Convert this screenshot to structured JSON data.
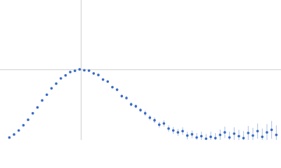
{
  "chart_data": {
    "type": "scatter",
    "x": [
      0.2,
      0.3,
      0.4,
      0.5,
      0.6,
      0.7,
      0.8,
      0.9,
      1.0,
      1.1,
      1.2,
      1.3,
      1.4,
      1.5,
      1.6,
      1.7,
      1.8,
      1.9,
      2.0,
      2.1,
      2.2,
      2.3,
      2.4,
      2.5,
      2.6,
      2.7,
      2.8,
      2.9,
      3.0,
      3.1,
      3.2,
      3.3,
      3.4,
      3.5,
      3.6,
      3.7,
      3.8,
      3.9,
      4.0,
      4.1,
      4.2,
      4.3,
      4.4,
      4.5,
      4.6,
      4.7,
      4.8,
      4.9,
      5.0,
      5.1,
      5.2,
      5.3,
      5.4,
      5.5,
      5.6,
      5.7,
      5.8,
      5.9
    ],
    "series": [
      {
        "color": "#3a6bc4",
        "error_color": "#a9c0e8",
        "values": [
          0.039,
          0.087,
          0.15,
          0.232,
          0.318,
          0.42,
          0.512,
          0.622,
          0.712,
          0.812,
          0.886,
          0.968,
          1.015,
          1.068,
          1.088,
          1.11,
          1.096,
          1.09,
          1.046,
          1.022,
          0.95,
          0.918,
          0.83,
          0.79,
          0.69,
          0.66,
          0.56,
          0.53,
          0.47,
          0.42,
          0.35,
          0.31,
          0.24,
          0.26,
          0.18,
          0.15,
          0.12,
          0.14,
          0.07,
          0.09,
          0.04,
          0.06,
          0.02,
          0.05,
          0.03,
          0.08,
          0.12,
          0.04,
          0.1,
          0.06,
          0.03,
          0.11,
          0.07,
          0.14,
          0.05,
          0.12,
          0.16,
          0.08
        ],
        "errors": [
          0.01,
          0.01,
          0.01,
          0.01,
          0.01,
          0.01,
          0.01,
          0.01,
          0.01,
          0.01,
          0.01,
          0.01,
          0.01,
          0.01,
          0.01,
          0.01,
          0.01,
          0.01,
          0.01,
          0.02,
          0.02,
          0.02,
          0.02,
          0.025,
          0.025,
          0.03,
          0.03,
          0.03,
          0.03,
          0.04,
          0.04,
          0.045,
          0.045,
          0.05,
          0.05,
          0.055,
          0.055,
          0.06,
          0.06,
          0.06,
          0.07,
          0.07,
          0.075,
          0.08,
          0.08,
          0.085,
          0.09,
          0.09,
          0.1,
          0.1,
          0.11,
          0.11,
          0.12,
          0.12,
          0.13,
          0.13,
          0.14,
          0.15
        ]
      }
    ],
    "xlim": [
      0,
      6
    ],
    "ylim": [
      0,
      2.2
    ],
    "xline": 1.732,
    "yline": 1.104,
    "line_color": "#cfcfcf"
  }
}
